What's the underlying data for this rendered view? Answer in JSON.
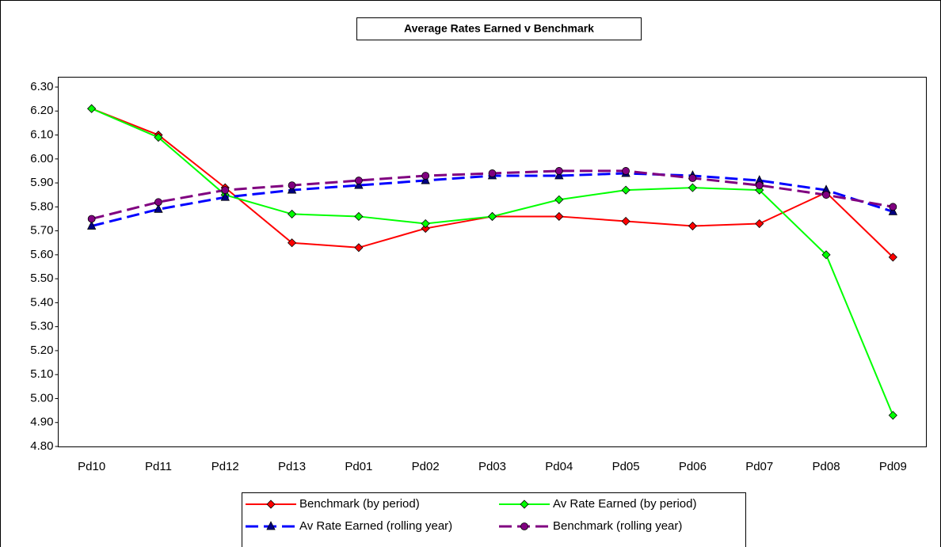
{
  "chart_data": {
    "type": "line",
    "title": "Average Rates Earned v Benchmark",
    "categories": [
      "Pd10",
      "Pd11",
      "Pd12",
      "Pd13",
      "Pd01",
      "Pd02",
      "Pd03",
      "Pd04",
      "Pd05",
      "Pd06",
      "Pd07",
      "Pd08",
      "Pd09"
    ],
    "series": [
      {
        "name": "Benchmark (by period)",
        "color": "#ff0000",
        "marker": "diamond",
        "dash": false,
        "values": [
          6.21,
          6.1,
          5.88,
          5.65,
          5.63,
          5.71,
          5.76,
          5.76,
          5.74,
          5.72,
          5.73,
          5.86,
          5.59
        ]
      },
      {
        "name": "Av Rate Earned (by period)",
        "color": "#00ff00",
        "marker": "diamond",
        "dash": false,
        "values": [
          6.21,
          6.09,
          5.85,
          5.77,
          5.76,
          5.73,
          5.76,
          5.83,
          5.87,
          5.88,
          5.87,
          5.6,
          4.93
        ]
      },
      {
        "name": "Av Rate Earned (rolling year)",
        "color": "#0000ff",
        "marker": "triangle",
        "dash": true,
        "values": [
          5.72,
          5.79,
          5.84,
          5.87,
          5.89,
          5.91,
          5.93,
          5.93,
          5.94,
          5.93,
          5.91,
          5.87,
          5.78
        ]
      },
      {
        "name": "Benchmark (rolling year)",
        "color": "#800080",
        "marker": "circle",
        "dash": true,
        "values": [
          5.75,
          5.82,
          5.87,
          5.89,
          5.91,
          5.93,
          5.94,
          5.95,
          5.95,
          5.92,
          5.89,
          5.85,
          5.8
        ]
      }
    ],
    "ylim": [
      4.8,
      6.3
    ],
    "yticks": [
      {
        "value": 4.8,
        "label": "4.80"
      },
      {
        "value": 4.9,
        "label": "4.90"
      },
      {
        "value": 5.0,
        "label": "5.00"
      },
      {
        "value": 5.1,
        "label": "5.10"
      },
      {
        "value": 5.2,
        "label": "5.20"
      },
      {
        "value": 5.3,
        "label": "5.30"
      },
      {
        "value": 5.4,
        "label": "5.40"
      },
      {
        "value": 5.5,
        "label": "5.50"
      },
      {
        "value": 5.6,
        "label": "5.60"
      },
      {
        "value": 5.7,
        "label": "5.70"
      },
      {
        "value": 5.8,
        "label": "5.80"
      },
      {
        "value": 5.9,
        "label": "5.90"
      },
      {
        "value": 6.0,
        "label": "6.00"
      },
      {
        "value": 6.1,
        "label": "6.10"
      },
      {
        "value": 6.2,
        "label": "6.20"
      },
      {
        "value": 6.3,
        "label": "6.30"
      }
    ]
  }
}
